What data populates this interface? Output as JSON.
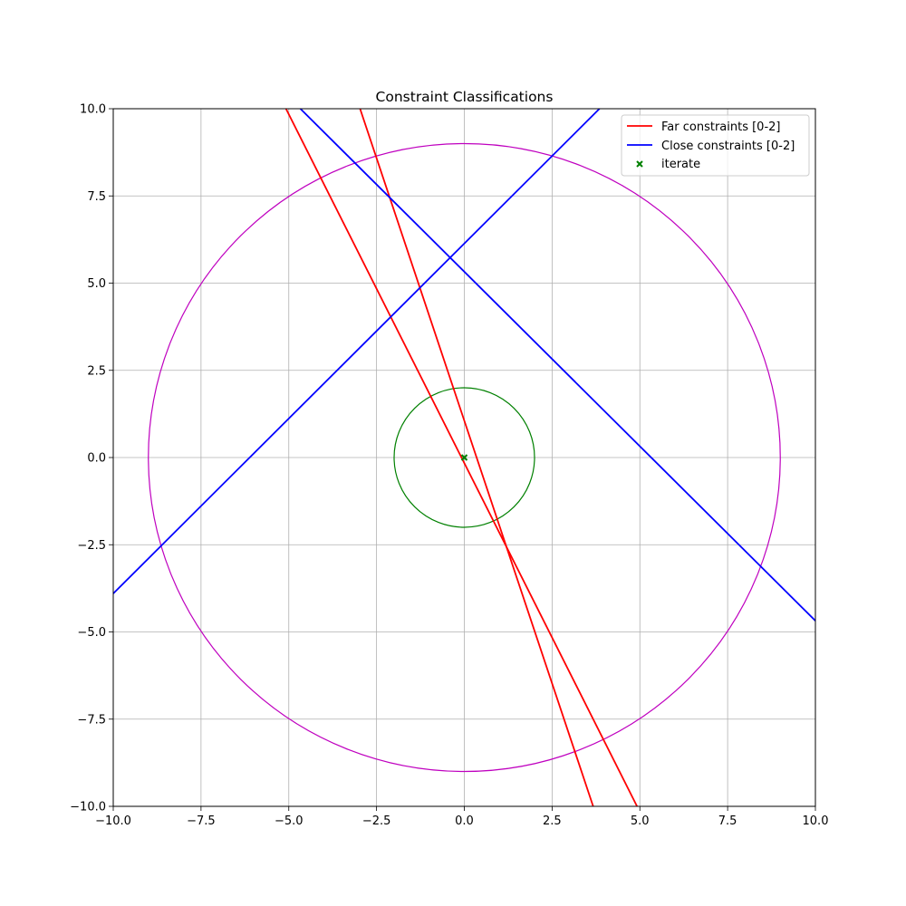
{
  "chart_data": {
    "type": "line",
    "title": "Constraint Classifications",
    "xlabel": "",
    "ylabel": "",
    "xlim": [
      -10,
      10
    ],
    "ylim": [
      -10,
      10
    ],
    "grid": true,
    "legend_position": "top-right",
    "xticks": [
      -10,
      -7.5,
      -5,
      -2.5,
      0,
      2.5,
      5,
      7.5,
      10
    ],
    "yticks": [
      -10,
      -7.5,
      -5,
      -2.5,
      0,
      2.5,
      5,
      7.5,
      10
    ],
    "xtick_labels": [
      "−10.0",
      "−7.5",
      "−5.0",
      "−2.5",
      "0.0",
      "2.5",
      "5.0",
      "7.5",
      "10.0"
    ],
    "ytick_labels": [
      "−10.0",
      "−7.5",
      "−5.0",
      "−2.5",
      "0.0",
      "2.5",
      "5.0",
      "7.5",
      "10.0"
    ],
    "circles": [
      {
        "cx": 0,
        "cy": 0,
        "r": 9,
        "color": "#bf00bf"
      },
      {
        "cx": 0,
        "cy": 0,
        "r": 2,
        "color": "#008000"
      }
    ],
    "series": [
      {
        "name": "Far constraints [0-2]",
        "color": "#ff0000",
        "lines": [
          {
            "x": [
              -5.08,
              4.92
            ],
            "y": [
              10,
              -10
            ]
          },
          {
            "x": [
              -2.97,
              3.67
            ],
            "y": [
              10,
              -10
            ]
          }
        ]
      },
      {
        "name": "Close constraints [0-2]",
        "color": "#0000ff",
        "lines": [
          {
            "x": [
              -10,
              3.85
            ],
            "y": [
              -3.9,
              10
            ]
          },
          {
            "x": [
              -4.67,
              10
            ],
            "y": [
              10,
              -4.68
            ]
          }
        ]
      }
    ],
    "points": {
      "name": "iterate",
      "color": "#008000",
      "marker": "x",
      "x": [
        0
      ],
      "y": [
        0
      ]
    }
  }
}
